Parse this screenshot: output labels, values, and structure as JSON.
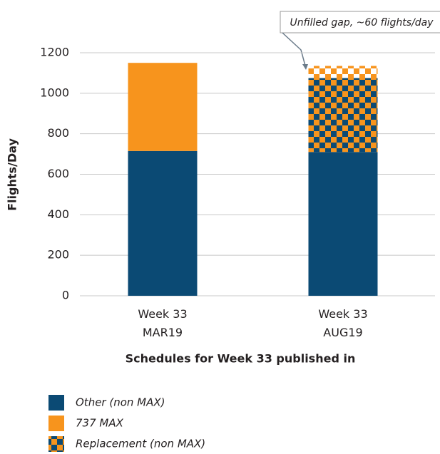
{
  "chart_data": {
    "type": "stacked_bar",
    "categories": [
      "Week 33\nMAR19",
      "Week 33\nAUG19"
    ],
    "series": [
      {
        "name": "Other (non MAX)",
        "color": "#0b4a74",
        "values": [
          715,
          710
        ]
      },
      {
        "name": "737 MAX",
        "color": "#f7941d",
        "values": [
          435,
          null
        ]
      },
      {
        "name": "Replacement (non MAX)",
        "color": "#f7941d",
        "pattern": "checker",
        "values": [
          null,
          365
        ]
      },
      {
        "color": "#f7941d",
        "pattern": "checker-light",
        "values": [
          null,
          60
        ]
      }
    ],
    "annotation": "Unfilled gap, ~60 flights/day",
    "ylabel": "Flights/Day",
    "xlabel": "Schedules for Week 33 published in",
    "ylim": [
      0,
      1200
    ],
    "yticks": [
      0,
      200,
      400,
      600,
      800,
      1000,
      1200
    ],
    "grid": true
  }
}
